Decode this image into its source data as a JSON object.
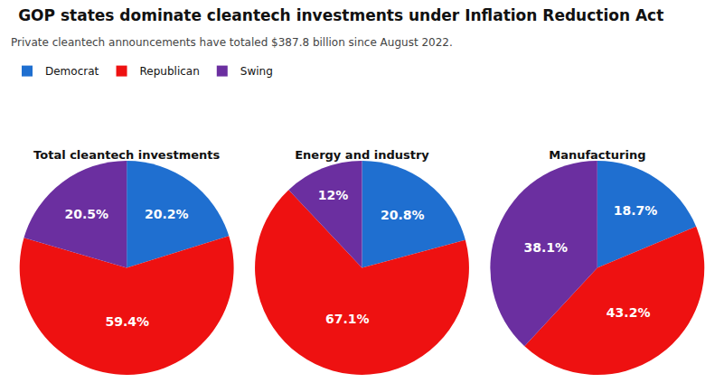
{
  "title": "GOP states dominate cleantech investments under Inflation Reduction Act",
  "subtitle": "Private cleantech announcements have totaled $387.8 billion since August 2022.",
  "legend": "upper left",
  "chart_data": [
    {
      "type": "pie",
      "title": "Total cleantech investments",
      "categories": [
        "Democrat",
        "Republican",
        "Swing"
      ],
      "values": [
        20.2,
        59.4,
        20.5
      ],
      "value_labels": [
        "20.2%",
        "59.4%",
        "20.5%"
      ],
      "colors": [
        "#1f6fd0",
        "#ee1111",
        "#6b2fa0"
      ],
      "data_labels": true
    },
    {
      "type": "pie",
      "title": "Energy and industry",
      "categories": [
        "Democrat",
        "Republican",
        "Swing"
      ],
      "values": [
        20.8,
        67.1,
        12.0
      ],
      "value_labels": [
        "20.8%",
        "67.1%",
        "12%"
      ],
      "colors": [
        "#1f6fd0",
        "#ee1111",
        "#6b2fa0"
      ],
      "data_labels": true
    },
    {
      "type": "pie",
      "title": "Manufacturing",
      "categories": [
        "Democrat",
        "Republican",
        "Swing"
      ],
      "values": [
        18.7,
        43.2,
        38.1
      ],
      "value_labels": [
        "18.7%",
        "43.2%",
        "38.1%"
      ],
      "colors": [
        "#1f6fd0",
        "#ee1111",
        "#6b2fa0"
      ],
      "data_labels": true
    }
  ]
}
